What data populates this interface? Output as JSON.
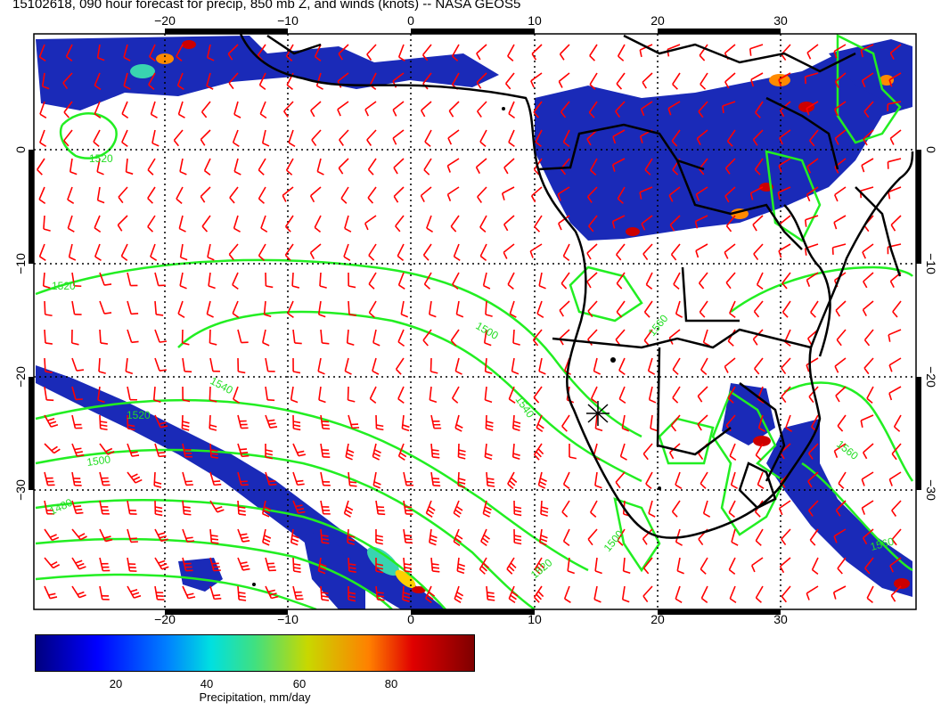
{
  "title": "15102618, 090 hour forecast for precip, 850 mb Z, and winds (knots) -- NASA GEOS5",
  "axes": {
    "x_ticks": [
      "−20",
      "−10",
      "0",
      "10",
      "20",
      "30"
    ],
    "y_ticks": [
      "0",
      "−10",
      "−20",
      "−30"
    ]
  },
  "contour_labels": [
    "1520",
    "1540",
    "1520",
    "1500",
    "1480",
    "1520",
    "1500",
    "1560",
    "1540",
    "1520",
    "1500",
    "1560",
    "1560"
  ],
  "colorbar": {
    "ticks": [
      "20",
      "40",
      "60",
      "80"
    ],
    "label": "Precipitation, mm/day"
  },
  "colors": {
    "wind_barbs": "#ff0000",
    "height_contours": "#22ee22",
    "coastline": "#000000",
    "precip_low": "#00007f",
    "precip_high": "#7f0000"
  }
}
